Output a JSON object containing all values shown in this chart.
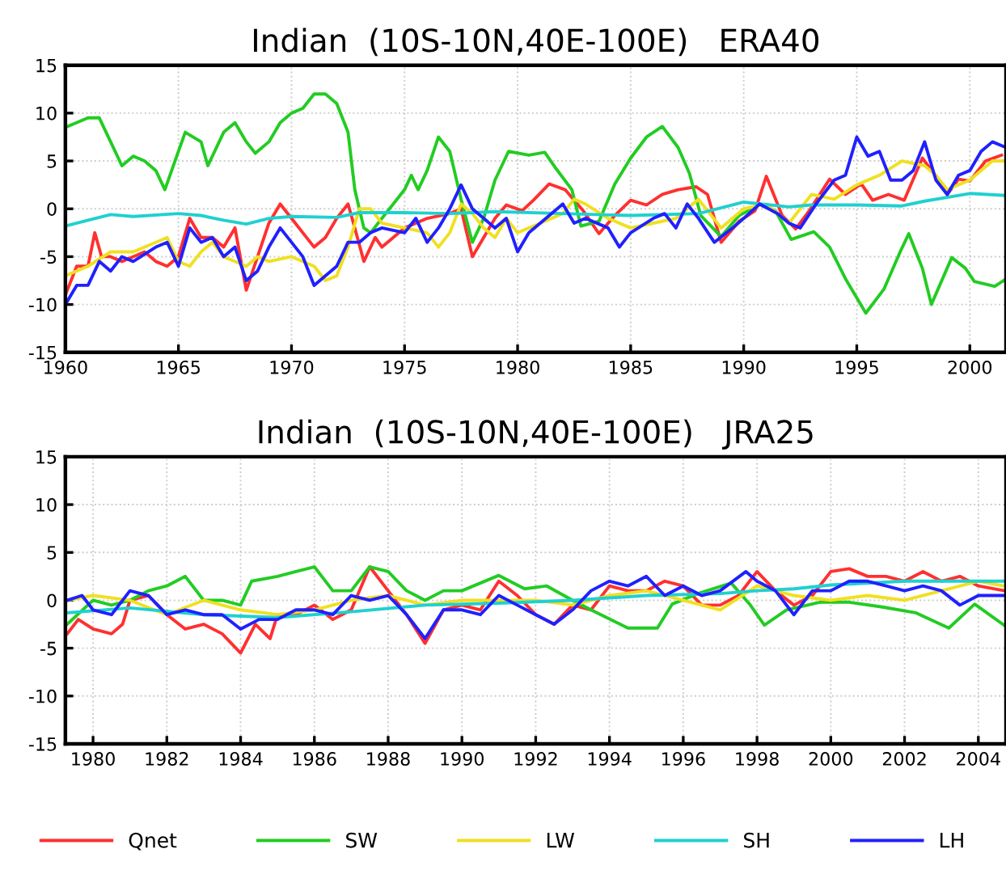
{
  "chart_data": [
    {
      "type": "line",
      "title": "Indian  (10S-10N,40E-100E)   ERA40",
      "xlim": [
        1960,
        2001.6
      ],
      "legend": "bottom",
      "xticks": [
        1960,
        1965,
        1970,
        1975,
        1980,
        1985,
        1990,
        1995,
        2000
      ],
      "ylim": [
        -15,
        15
      ],
      "yticks": [
        -15,
        -10,
        -5,
        0,
        5,
        10,
        15
      ],
      "grid": true,
      "series": [
        {
          "name": "Qnet",
          "color": "#ff3030",
          "x": [
            1960,
            1960.5,
            1961,
            1961.3,
            1961.6,
            1962,
            1962.5,
            1963,
            1963.5,
            1964,
            1964.5,
            1965,
            1965.5,
            1966,
            1966.5,
            1967,
            1967.5,
            1968,
            1968.5,
            1969,
            1969.5,
            1970,
            1970.5,
            1971,
            1971.5,
            1972,
            1972.5,
            1972.8,
            1973.2,
            1973.7,
            1974,
            1975,
            1976,
            1977,
            1977.5,
            1978,
            1978.5,
            1979,
            1979.5,
            1980.2,
            1980.7,
            1981.4,
            1982.1,
            1982.9,
            1983.6,
            1984.3,
            1985,
            1985.7,
            1986.4,
            1987.1,
            1987.9,
            1988.4,
            1989,
            1989.8,
            1990.5,
            1991,
            1991.7,
            1992.3,
            1992.9,
            1993.8,
            1994.5,
            1995.2,
            1995.7,
            1996.4,
            1997.1,
            1997.9,
            1998.6,
            1999,
            1999.5,
            2000,
            2000.7,
            2001.4
          ],
          "values": [
            -9,
            -6,
            -6,
            -2.5,
            -5,
            -5,
            -5.5,
            -5,
            -4.5,
            -5.5,
            -6,
            -5,
            -1,
            -3,
            -3,
            -4,
            -2,
            -8.5,
            -5,
            -1.5,
            0.5,
            -1,
            -2.5,
            -4,
            -3,
            -1,
            0.5,
            -2,
            -5.5,
            -3,
            -4,
            -2,
            -1,
            -0.5,
            0,
            -5,
            -3,
            -1,
            0.4,
            -0.2,
            0.9,
            2.6,
            2,
            -0.2,
            -2.6,
            -0.7,
            0.9,
            0.4,
            1.5,
            2,
            2.3,
            1.5,
            -3.5,
            -1.3,
            -0.2,
            3.4,
            -0.7,
            -2.1,
            -0.2,
            3.1,
            1.5,
            2.6,
            0.9,
            1.5,
            0.9,
            5.3,
            3.1,
            1.5,
            3.1,
            2.9,
            5,
            5.6
          ]
        },
        {
          "name": "SW",
          "color": "#22cc22",
          "x": [
            1960,
            1961,
            1961.5,
            1962,
            1962.5,
            1963,
            1963.5,
            1964,
            1964.4,
            1965,
            1965.3,
            1966,
            1966.3,
            1967,
            1967.5,
            1968,
            1968.4,
            1969,
            1969.5,
            1970,
            1970.5,
            1971,
            1971.5,
            1972,
            1972.5,
            1972.8,
            1973.2,
            1973.5,
            1974,
            1975,
            1975.3,
            1975.6,
            1976,
            1976.5,
            1977,
            1977.5,
            1978,
            1978.5,
            1979,
            1979.6,
            1980.5,
            1981.2,
            1981.7,
            1982.4,
            1982.8,
            1983.6,
            1984.3,
            1985,
            1985.7,
            1986.4,
            1987.1,
            1987.6,
            1988.1,
            1989,
            1989.8,
            1990.7,
            1991.4,
            1992.1,
            1993.1,
            1993.8,
            1994.5,
            1995.4,
            1996.2,
            1996.9,
            1997.3,
            1997.9,
            1998.3,
            1999.2,
            1999.8,
            2000.2,
            2001.1,
            2001.5
          ],
          "values": [
            8.5,
            9.5,
            9.5,
            7,
            4.5,
            5.5,
            5,
            4,
            2,
            6,
            8,
            7,
            4.5,
            8,
            9,
            7,
            5.8,
            7,
            9,
            10,
            10.5,
            12,
            12,
            11,
            8,
            2,
            -2,
            -2.5,
            -1,
            2,
            3.5,
            2,
            4,
            7.5,
            6,
            1,
            -3.5,
            -1,
            3,
            6,
            5.6,
            5.9,
            4.2,
            2,
            -1.8,
            -1.3,
            2.6,
            5.3,
            7.5,
            8.6,
            6.4,
            3.7,
            -0.7,
            -2.9,
            -0.7,
            0.4,
            -0.2,
            -3.2,
            -2.4,
            -4,
            -7.3,
            -10.9,
            -8.4,
            -4.6,
            -2.6,
            -6.2,
            -10,
            -5.1,
            -6.2,
            -7.6,
            -8.1,
            -7.5
          ]
        },
        {
          "name": "LW",
          "color": "#f0e020",
          "x": [
            1960,
            1961,
            1962,
            1963,
            1964,
            1964.5,
            1965,
            1965.5,
            1966,
            1966.5,
            1967,
            1968,
            1968.5,
            1969,
            1970,
            1971,
            1971.5,
            1972,
            1972.5,
            1973,
            1973.5,
            1974,
            1975,
            1976,
            1976.5,
            1977,
            1977.5,
            1978,
            1978.5,
            1979,
            1979.5,
            1980,
            1981,
            1982,
            1982.5,
            1983,
            1984,
            1985,
            1986,
            1987,
            1988,
            1989,
            1990,
            1991,
            1992,
            1993,
            1994,
            1995,
            1996,
            1997,
            1998,
            1998.5,
            1999,
            2000,
            2001,
            2001.5
          ],
          "values": [
            -7,
            -6,
            -4.5,
            -4.5,
            -3.5,
            -3,
            -5.5,
            -6,
            -4.5,
            -3.5,
            -5,
            -6,
            -5,
            -5.5,
            -5,
            -6,
            -7.5,
            -7,
            -4,
            0,
            0,
            -1.5,
            -2,
            -2.5,
            -4,
            -2.5,
            0.5,
            -0.5,
            -2,
            -3,
            -1,
            -2.5,
            -1.5,
            -0.5,
            1,
            0.5,
            -1,
            -2,
            -1.5,
            -1,
            1,
            -2,
            0,
            0.5,
            -1.5,
            1.5,
            1,
            2.5,
            3.5,
            5,
            4.5,
            3.5,
            2,
            3,
            5,
            5
          ]
        },
        {
          "name": "SH",
          "color": "#20d0d0",
          "x": [
            1960,
            1961,
            1962,
            1963,
            1965,
            1966,
            1967,
            1968,
            1969,
            1970,
            1972,
            1973,
            1975,
            1977,
            1979,
            1982,
            1985,
            1988,
            1990,
            1992,
            1993,
            1995,
            1997,
            1998,
            2000,
            2001.5
          ],
          "values": [
            -1.8,
            -1.2,
            -0.6,
            -0.8,
            -0.5,
            -0.7,
            -1.2,
            -1.6,
            -1,
            -0.8,
            -0.9,
            -0.4,
            -0.4,
            -0.5,
            -0.3,
            -0.5,
            -0.7,
            -0.5,
            0.7,
            0.2,
            0.4,
            0.4,
            0.3,
            0.8,
            1.6,
            1.4
          ]
        },
        {
          "name": "LH",
          "color": "#2020ff",
          "x": [
            1960,
            1960.5,
            1961,
            1961.5,
            1962,
            1962.5,
            1963,
            1964,
            1964.5,
            1965,
            1965.5,
            1966,
            1966.5,
            1967,
            1967.5,
            1968,
            1968.5,
            1969,
            1969.5,
            1970,
            1970.5,
            1971,
            1972,
            1972.5,
            1973,
            1973.5,
            1974,
            1975,
            1975.5,
            1976,
            1976.5,
            1977,
            1977.5,
            1978,
            1978.5,
            1979,
            1979.5,
            1980,
            1980.5,
            1981,
            1982,
            1982.5,
            1983,
            1984,
            1984.5,
            1985,
            1986,
            1986.5,
            1987,
            1987.5,
            1988,
            1988.7,
            1989.5,
            1990,
            1990.7,
            1991.5,
            1992,
            1992.5,
            1993.2,
            1994,
            1994.5,
            1995,
            1995.5,
            1996,
            1996.5,
            1997,
            1997.5,
            1998,
            1998.5,
            1999,
            1999.5,
            2000,
            2000.5,
            2001,
            2001.5
          ],
          "values": [
            -10,
            -8,
            -8,
            -5.5,
            -6.5,
            -5,
            -5.5,
            -4,
            -3.5,
            -6,
            -2,
            -3.5,
            -3,
            -5,
            -4,
            -7.5,
            -6.5,
            -4,
            -2,
            -3.5,
            -5,
            -8,
            -6,
            -3.5,
            -3.5,
            -2.5,
            -2,
            -2.5,
            -1,
            -3.5,
            -2,
            0,
            2.5,
            0,
            -1,
            -2,
            -1,
            -4.5,
            -2.5,
            -1.5,
            0.5,
            -1.5,
            -1,
            -2,
            -4,
            -2.5,
            -1,
            -0.5,
            -2,
            0.5,
            -1,
            -3.5,
            -2,
            -1,
            0.5,
            -0.5,
            -1.5,
            -2,
            0.5,
            3,
            3.5,
            7.5,
            5.5,
            6,
            3,
            3,
            4,
            7,
            3,
            1.5,
            3.5,
            4,
            6,
            7,
            6.5
          ]
        }
      ]
    },
    {
      "type": "line",
      "title": "Indian  (10S-10N,40E-100E)   JRA25",
      "xlim": [
        1979.25,
        2004.75
      ],
      "xticks": [
        1980,
        1982,
        1984,
        1986,
        1988,
        1990,
        1992,
        1994,
        1996,
        1998,
        2000,
        2002,
        2004
      ],
      "ylim": [
        -15,
        15
      ],
      "yticks": [
        -15,
        -10,
        -5,
        0,
        5,
        10,
        15
      ],
      "grid": true,
      "series": [
        {
          "color": "#ff3030",
          "x": [
            1979.3,
            1979.6,
            1980,
            1980.5,
            1980.8,
            1981,
            1981.5,
            1982,
            1982.5,
            1983,
            1983.5,
            1984,
            1984.4,
            1984.8,
            1985,
            1985.5,
            1986,
            1986.5,
            1987,
            1987.5,
            1988,
            1988.5,
            1989,
            1989.5,
            1990,
            1990.5,
            1991,
            1991.5,
            1992,
            1992.5,
            1993,
            1993.5,
            1994,
            1994.5,
            1995,
            1995.5,
            1996,
            1996.5,
            1997,
            1997.5,
            1998,
            1998.5,
            1999,
            1999.5,
            2000,
            2000.5,
            2001,
            2001.5,
            2002,
            2002.5,
            2003,
            2003.5,
            2004,
            2004.7
          ],
          "values": [
            -3.5,
            -2,
            -3,
            -3.5,
            -2.5,
            0,
            0.5,
            -1.5,
            -3,
            -2.5,
            -3.5,
            -5.5,
            -2.5,
            -4,
            -1.5,
            -1.5,
            -0.5,
            -2,
            -1,
            3.5,
            1,
            -1.5,
            -4.5,
            -1,
            -0.5,
            -1,
            2,
            0.5,
            -1.5,
            -2.5,
            -0.5,
            -1,
            1.5,
            1,
            1,
            2,
            1.5,
            -0.5,
            -0.5,
            0.5,
            3,
            1,
            -0.5,
            0.5,
            3,
            3.3,
            2.5,
            2.5,
            2,
            3,
            2,
            2.5,
            1.5,
            1
          ]
        },
        {
          "color": "#22cc22",
          "x": [
            1979.3,
            1980,
            1980.5,
            1981,
            1981.5,
            1982,
            1982.5,
            1983,
            1983.5,
            1984,
            1984.3,
            1985,
            1985.5,
            1986,
            1986.5,
            1987,
            1987.5,
            1988,
            1988.5,
            1989,
            1989.5,
            1990,
            1991,
            1991.7,
            1992.3,
            1993,
            1993.5,
            1994.5,
            1995.3,
            1995.7,
            1996.4,
            1997.3,
            1997.8,
            1998.2,
            1998.8,
            1999.7,
            2000.5,
            2001.4,
            2002.3,
            2003.2,
            2003.9,
            2004.7
          ],
          "values": [
            -2.5,
            0,
            -0.5,
            0,
            1,
            1.5,
            2.5,
            0,
            0,
            -0.5,
            2,
            2.5,
            3,
            3.5,
            1,
            1,
            3.5,
            3,
            1,
            0,
            1,
            1,
            2.6,
            1.2,
            1.5,
            0,
            -1,
            -2.9,
            -2.9,
            -0.4,
            0.7,
            1.8,
            -0.4,
            -2.6,
            -1,
            -0.2,
            -0.2,
            -0.7,
            -1.3,
            -2.9,
            -0.4,
            -2.6
          ]
        },
        {
          "color": "#f0e020",
          "x": [
            1979.3,
            1980,
            1981,
            1982,
            1983,
            1984,
            1985,
            1986,
            1987,
            1988,
            1989,
            1990,
            1991,
            1992,
            1993,
            1994,
            1995,
            1996,
            1997,
            1998,
            1999,
            2000,
            2001,
            2002,
            2003,
            2004,
            2004.7
          ],
          "values": [
            0,
            0.5,
            0,
            -1.5,
            0,
            -1,
            -1.5,
            -1,
            0,
            0.5,
            -0.5,
            0,
            0,
            0,
            -0.5,
            0.5,
            1,
            0,
            -1,
            1.5,
            0.5,
            0,
            0.5,
            0,
            1,
            2,
            1.5
          ]
        },
        {
          "color": "#20d0d0",
          "x": [
            1979.3,
            1981,
            1983,
            1985,
            1987,
            1989,
            1991,
            1993,
            1995,
            1997,
            1998,
            1999,
            2000,
            2002,
            2004.7
          ],
          "values": [
            -1.3,
            -0.8,
            -1.5,
            -1.8,
            -1.2,
            -0.5,
            -0.3,
            0,
            0.5,
            0.7,
            1,
            1.2,
            1.6,
            2,
            2
          ]
        },
        {
          "color": "#2020ff",
          "x": [
            1979.3,
            1979.7,
            1980,
            1980.5,
            1981,
            1981.5,
            1982,
            1982.5,
            1983,
            1983.5,
            1984,
            1984.5,
            1985,
            1985.5,
            1986,
            1986.5,
            1987,
            1987.5,
            1988,
            1988.5,
            1989,
            1989.5,
            1990,
            1990.5,
            1991,
            1991.5,
            1992,
            1992.5,
            1993,
            1993.5,
            1994,
            1994.5,
            1995,
            1995.5,
            1996,
            1996.5,
            1997,
            1997.7,
            1998,
            1998.5,
            1999,
            1999.5,
            2000,
            2000.5,
            2001,
            2001.5,
            2002,
            2002.5,
            2003,
            2003.5,
            2004,
            2004.7
          ],
          "values": [
            0,
            0.5,
            -1,
            -1.5,
            1,
            0.5,
            -1.5,
            -1,
            -1.5,
            -1.5,
            -3,
            -2,
            -2,
            -1,
            -1,
            -1.5,
            0.5,
            0,
            0.5,
            -1.5,
            -4,
            -1,
            -1,
            -1.5,
            0.5,
            -0.5,
            -1.5,
            -2.5,
            -1,
            1,
            2,
            1.5,
            2.5,
            0.5,
            1.5,
            0.5,
            1,
            3,
            2,
            1,
            -1.5,
            1,
            1,
            2,
            2,
            1.5,
            1,
            1.5,
            1,
            -0.5,
            0.5,
            0.5
          ]
        }
      ]
    }
  ]
}
